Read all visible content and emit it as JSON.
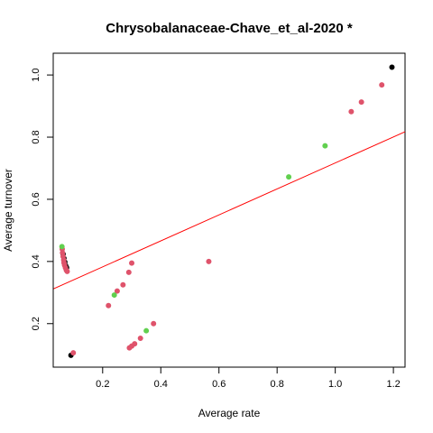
{
  "chart_data": {
    "type": "scatter",
    "title": "Chrysobalanaceae-Chave_et_al-2020 *",
    "xlabel": "Average rate",
    "ylabel": "Average turnover",
    "xlim": [
      0.03,
      1.24
    ],
    "ylim": [
      0.06,
      1.07
    ],
    "x_ticks": [
      {
        "value": 0.2,
        "label": "0.2"
      },
      {
        "value": 0.4,
        "label": "0.4"
      },
      {
        "value": 0.6,
        "label": "0.6"
      },
      {
        "value": 0.8,
        "label": "0.8"
      },
      {
        "value": 1.0,
        "label": "1.0"
      },
      {
        "value": 1.2,
        "label": "1.2"
      }
    ],
    "y_ticks": [
      {
        "value": 0.2,
        "label": "0.2"
      },
      {
        "value": 0.4,
        "label": "0.4"
      },
      {
        "value": 0.6,
        "label": "0.6"
      },
      {
        "value": 0.8,
        "label": "0.8"
      },
      {
        "value": 1.0,
        "label": "1.0"
      }
    ],
    "grid": false,
    "legend": "none",
    "series": [
      {
        "color": "#000000",
        "points": [
          {
            "x": 0.064,
            "y": 0.424
          },
          {
            "x": 0.067,
            "y": 0.41
          },
          {
            "x": 0.07,
            "y": 0.398
          },
          {
            "x": 0.073,
            "y": 0.386
          },
          {
            "x": 0.076,
            "y": 0.38
          },
          {
            "x": 0.091,
            "y": 0.098
          },
          {
            "x": 1.195,
            "y": 1.025
          }
        ]
      },
      {
        "color": "#DF536B",
        "points": [
          {
            "x": 0.061,
            "y": 0.44
          },
          {
            "x": 0.062,
            "y": 0.428
          },
          {
            "x": 0.064,
            "y": 0.416
          },
          {
            "x": 0.066,
            "y": 0.405
          },
          {
            "x": 0.067,
            "y": 0.396
          },
          {
            "x": 0.069,
            "y": 0.388
          },
          {
            "x": 0.072,
            "y": 0.38
          },
          {
            "x": 0.075,
            "y": 0.372
          },
          {
            "x": 0.078,
            "y": 0.368
          },
          {
            "x": 0.099,
            "y": 0.106
          },
          {
            "x": 0.22,
            "y": 0.258
          },
          {
            "x": 0.25,
            "y": 0.305
          },
          {
            "x": 0.27,
            "y": 0.325
          },
          {
            "x": 0.29,
            "y": 0.365
          },
          {
            "x": 0.3,
            "y": 0.395
          },
          {
            "x": 0.292,
            "y": 0.122
          },
          {
            "x": 0.3,
            "y": 0.128
          },
          {
            "x": 0.31,
            "y": 0.135
          },
          {
            "x": 0.33,
            "y": 0.153
          },
          {
            "x": 0.375,
            "y": 0.2
          },
          {
            "x": 0.565,
            "y": 0.4
          },
          {
            "x": 1.055,
            "y": 0.882
          },
          {
            "x": 1.09,
            "y": 0.913
          },
          {
            "x": 1.16,
            "y": 0.968
          }
        ]
      },
      {
        "color": "#61D04F",
        "points": [
          {
            "x": 0.06,
            "y": 0.448
          },
          {
            "x": 0.24,
            "y": 0.292
          },
          {
            "x": 0.35,
            "y": 0.177
          },
          {
            "x": 0.84,
            "y": 0.672
          },
          {
            "x": 0.965,
            "y": 0.772
          }
        ]
      }
    ],
    "fit_line": {
      "color": "#FF0000",
      "intercept": 0.299,
      "slope": 0.418
    }
  }
}
